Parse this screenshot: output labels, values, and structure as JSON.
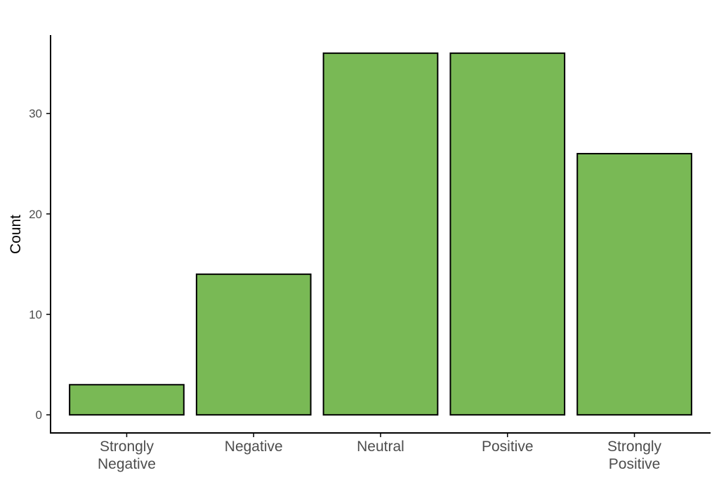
{
  "chart_data": {
    "type": "bar",
    "categories": [
      [
        "Strongly",
        "Negative"
      ],
      [
        "Negative"
      ],
      [
        "Neutral"
      ],
      [
        "Positive"
      ],
      [
        "Strongly",
        "Positive"
      ]
    ],
    "values": [
      3,
      14,
      36,
      36,
      26
    ],
    "title": "",
    "xlabel": "",
    "ylabel": "Count",
    "ylim": [
      -1.8,
      37.8
    ],
    "yticks": [
      0,
      10,
      20,
      30
    ],
    "grid": false,
    "bar_fill": "#79b955",
    "bar_stroke": "#000000"
  }
}
